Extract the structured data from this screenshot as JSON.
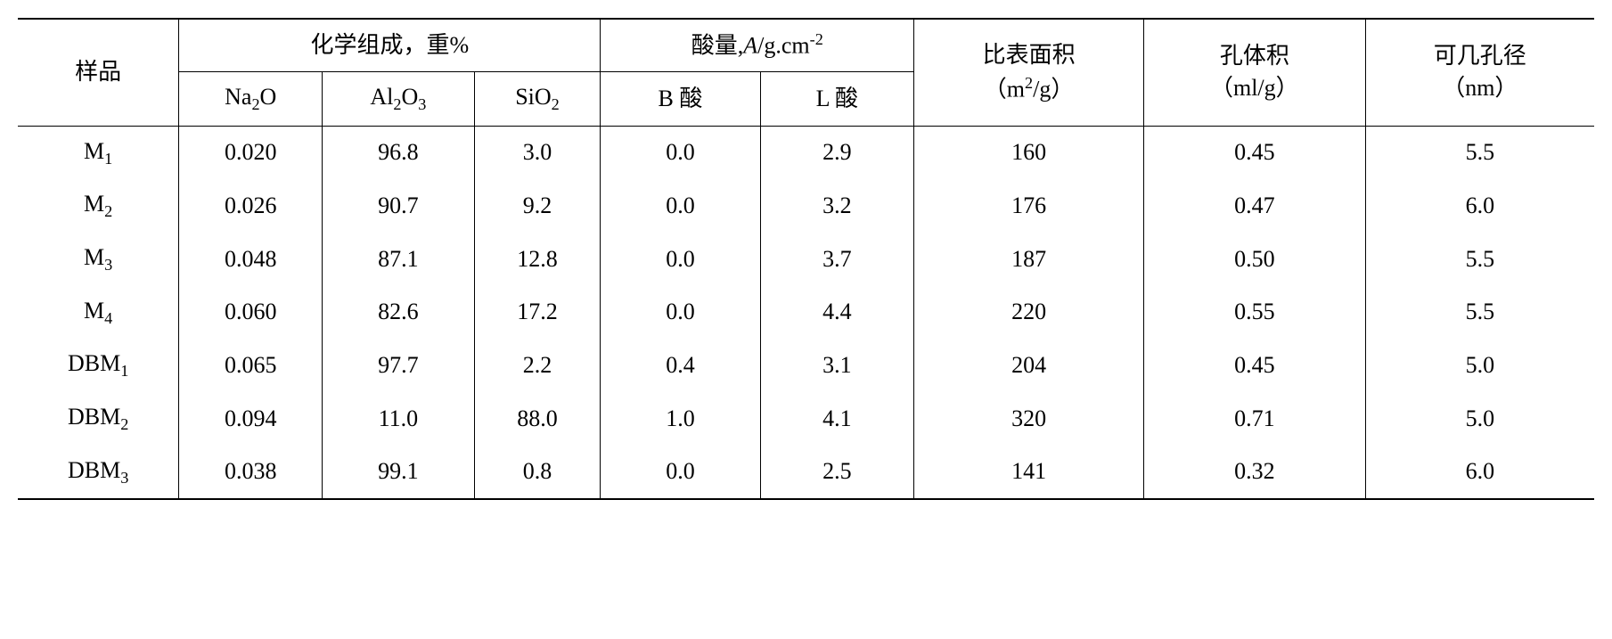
{
  "table": {
    "headers": {
      "sample": "样品",
      "chem_group": "化学组成，重%",
      "acid_group_prefix": "酸量,",
      "acid_group_var": "A",
      "acid_group_suffix": "/g.cm",
      "acid_group_exp": "-2",
      "surface_area_line1": "比表面积",
      "surface_area_line2": "（m",
      "surface_area_exp": "2",
      "surface_area_line2_suffix": "/g）",
      "pore_volume_line1": "孔体积",
      "pore_volume_line2": "（ml/g）",
      "pore_diameter_line1": "可几孔径",
      "pore_diameter_line2": "（nm）",
      "na2o_prefix": "Na",
      "na2o_sub": "2",
      "na2o_suffix": "O",
      "al2o3_prefix": "Al",
      "al2o3_sub1": "2",
      "al2o3_mid": "O",
      "al2o3_sub2": "3",
      "sio2_prefix": "SiO",
      "sio2_sub": "2",
      "b_acid": "B 酸",
      "l_acid": "L 酸"
    },
    "rows": [
      {
        "sample_prefix": "M",
        "sample_sub": "1",
        "na2o": "0.020",
        "al2o3": "96.8",
        "sio2": "3.0",
        "b_acid": "0.0",
        "l_acid": "2.9",
        "surface": "160",
        "pore_vol": "0.45",
        "pore_dia": "5.5"
      },
      {
        "sample_prefix": "M",
        "sample_sub": "2",
        "na2o": "0.026",
        "al2o3": "90.7",
        "sio2": "9.2",
        "b_acid": "0.0",
        "l_acid": "3.2",
        "surface": "176",
        "pore_vol": "0.47",
        "pore_dia": "6.0"
      },
      {
        "sample_prefix": "M",
        "sample_sub": "3",
        "na2o": "0.048",
        "al2o3": "87.1",
        "sio2": "12.8",
        "b_acid": "0.0",
        "l_acid": "3.7",
        "surface": "187",
        "pore_vol": "0.50",
        "pore_dia": "5.5"
      },
      {
        "sample_prefix": "M",
        "sample_sub": "4",
        "na2o": "0.060",
        "al2o3": "82.6",
        "sio2": "17.2",
        "b_acid": "0.0",
        "l_acid": "4.4",
        "surface": "220",
        "pore_vol": "0.55",
        "pore_dia": "5.5"
      },
      {
        "sample_prefix": "DBM",
        "sample_sub": "1",
        "na2o": "0.065",
        "al2o3": "97.7",
        "sio2": "2.2",
        "b_acid": "0.4",
        "l_acid": "3.1",
        "surface": "204",
        "pore_vol": "0.45",
        "pore_dia": "5.0"
      },
      {
        "sample_prefix": "DBM",
        "sample_sub": "2",
        "na2o": "0.094",
        "al2o3": "11.0",
        "sio2": "88.0",
        "b_acid": "1.0",
        "l_acid": "4.1",
        "surface": "320",
        "pore_vol": "0.71",
        "pore_dia": "5.0"
      },
      {
        "sample_prefix": "DBM",
        "sample_sub": "3",
        "na2o": "0.038",
        "al2o3": "99.1",
        "sio2": "0.8",
        "b_acid": "0.0",
        "l_acid": "2.5",
        "surface": "141",
        "pore_vol": "0.32",
        "pore_dia": "6.0"
      }
    ],
    "styling": {
      "font_size": 26,
      "border_color": "#000000",
      "background_color": "#ffffff",
      "text_color": "#000000"
    }
  }
}
